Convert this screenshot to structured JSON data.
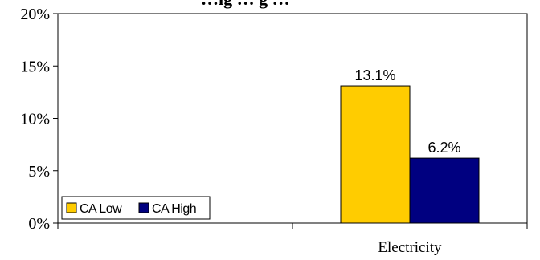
{
  "chart_data": {
    "type": "bar",
    "title": "…ig … g …",
    "categories": [
      "",
      "Electricity"
    ],
    "series": [
      {
        "name": "CA Low",
        "values": [
          null,
          13.1
        ],
        "color": "#FFCC00"
      },
      {
        "name": "CA High",
        "values": [
          null,
          6.2
        ],
        "color": "#000080"
      }
    ],
    "data_labels": [
      "13.1%",
      "6.2%"
    ],
    "yticks": [
      "0%",
      "5%",
      "10%",
      "15%",
      "20%"
    ],
    "ylim": [
      0,
      20
    ],
    "y_unit": "%",
    "legend_position": "bottom-left",
    "grid": false
  }
}
